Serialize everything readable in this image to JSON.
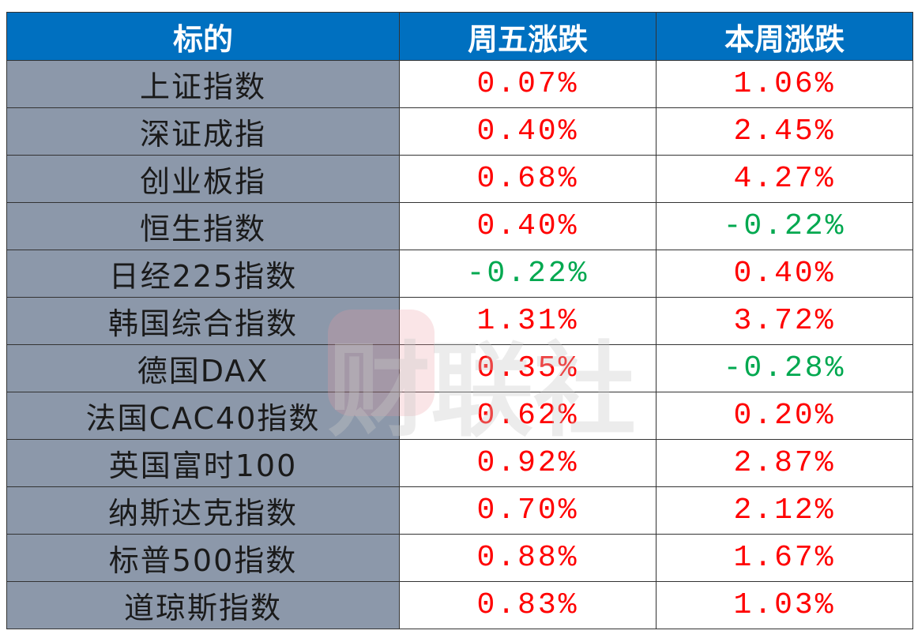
{
  "table": {
    "header": [
      "标的",
      "周五涨跌",
      "本周涨跌"
    ],
    "rows": [
      [
        "上证指数",
        "0.07%",
        "1.06%"
      ],
      [
        "深证成指",
        "0.40%",
        "2.45%"
      ],
      [
        "创业板指",
        "0.68%",
        "4.27%"
      ],
      [
        "恒生指数",
        "0.40%",
        "-0.22%"
      ],
      [
        "日经225指数",
        "-0.22%",
        "0.40%"
      ],
      [
        "韩国综合指数",
        "1.31%",
        "3.72%"
      ],
      [
        "德国DAX",
        "0.35%",
        "-0.28%"
      ],
      [
        "法国CAC40指数",
        "0.62%",
        "0.20%"
      ],
      [
        "英国富时100",
        "0.92%",
        "2.87%"
      ],
      [
        "纳斯达克指数",
        "0.70%",
        "2.12%"
      ],
      [
        "标普500指数",
        "0.88%",
        "1.67%"
      ],
      [
        "道琼斯指数",
        "0.83%",
        "1.03%"
      ]
    ]
  },
  "watermark": "财联社"
}
